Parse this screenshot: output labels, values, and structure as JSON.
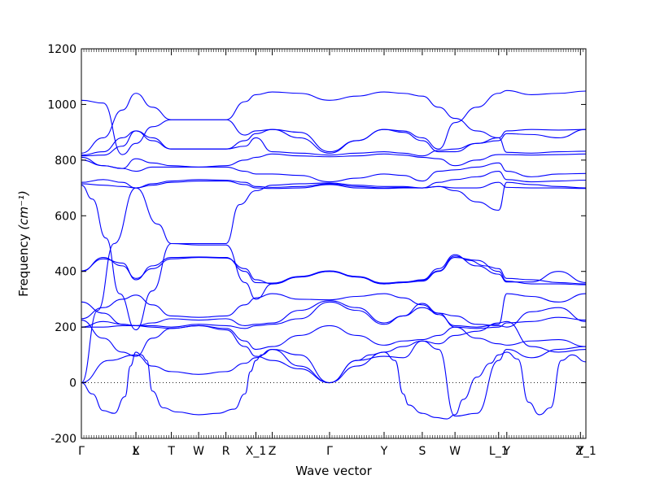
{
  "chart_data": {
    "type": "line",
    "xlabel": "Wave vector",
    "ylabel": "Frequency ",
    "ylabel_unit": "(cm⁻¹)",
    "ylim": [
      -200,
      1200
    ],
    "yticks": [
      -200,
      0,
      200,
      400,
      600,
      800,
      1000,
      1200
    ],
    "xlim": [
      0,
      18.5
    ],
    "high_symmetry_points": [
      {
        "label": "Γ",
        "x": 0
      },
      {
        "label": "X",
        "x": 2.0
      },
      {
        "label": "L",
        "x": 2.0
      },
      {
        "label": "T",
        "x": 3.3
      },
      {
        "label": "W",
        "x": 4.3
      },
      {
        "label": "R",
        "x": 5.3
      },
      {
        "label": "X_1",
        "x": 6.4
      },
      {
        "label": "Z",
        "x": 7.0
      },
      {
        "label": "Γ",
        "x": 9.1
      },
      {
        "label": "Y",
        "x": 11.1
      },
      {
        "label": "S",
        "x": 12.5
      },
      {
        "label": "W",
        "x": 13.7
      },
      {
        "label": "L_1",
        "x": 15.3
      },
      {
        "label": "Y",
        "x": 15.6
      },
      {
        "label": "Y",
        "x": 18.3
      },
      {
        "label": "Z_1",
        "x": 18.5
      }
    ],
    "grid": false,
    "zero_line": true,
    "series": [
      {
        "x": [
          0,
          0.8,
          1.5,
          2.0,
          2.6,
          3.3,
          4.3,
          5.3,
          6.0,
          6.4,
          7.0,
          8.0,
          9.1,
          10.1,
          11.1,
          11.8,
          12.5,
          13.1,
          13.7,
          14.5,
          15.3,
          15.6,
          16.5,
          17.5,
          18.5
        ],
        "y": [
          1015,
          1005,
          820,
          860,
          920,
          945,
          945,
          945,
          1010,
          1035,
          1045,
          1040,
          1015,
          1030,
          1045,
          1040,
          1030,
          990,
          950,
          905,
          880,
          905,
          910,
          908,
          910
        ]
      },
      {
        "x": [
          0,
          0.8,
          1.5,
          2.0,
          2.6,
          3.3,
          4.3,
          5.3,
          6.0,
          6.4,
          7.0,
          8.0,
          9.1,
          10.1,
          11.1,
          11.8,
          12.5,
          13.1,
          13.7,
          14.5,
          15.3,
          15.6,
          16.5,
          17.5,
          18.5
        ],
        "y": [
          825,
          880,
          980,
          1040,
          990,
          945,
          945,
          945,
          890,
          905,
          910,
          880,
          825,
          870,
          910,
          905,
          880,
          840,
          935,
          990,
          1040,
          1050,
          1035,
          1040,
          1048
        ]
      },
      {
        "x": [
          0,
          0.8,
          1.5,
          2.0,
          2.6,
          3.3,
          4.3,
          5.3,
          6.0,
          6.4,
          7.0,
          8.0,
          9.1,
          10.1,
          11.1,
          11.8,
          12.5,
          13.1,
          13.7,
          14.5,
          15.3,
          15.6,
          16.5,
          17.5,
          18.5
        ],
        "y": [
          818,
          830,
          880,
          905,
          870,
          840,
          840,
          840,
          870,
          895,
          910,
          900,
          830,
          870,
          910,
          900,
          870,
          830,
          830,
          860,
          870,
          895,
          892,
          880,
          910
        ]
      },
      {
        "x": [
          0,
          0.8,
          1.5,
          2.0,
          2.6,
          3.3,
          4.3,
          5.3,
          6.0,
          6.4,
          7.0,
          8.0,
          9.1,
          10.1,
          11.1,
          11.8,
          12.5,
          13.1,
          13.7,
          14.5,
          15.3,
          15.6,
          16.5,
          17.5,
          18.5
        ],
        "y": [
          815,
          818,
          850,
          905,
          880,
          840,
          840,
          840,
          850,
          880,
          830,
          825,
          818,
          825,
          830,
          825,
          815,
          835,
          840,
          860,
          880,
          828,
          825,
          830,
          832
        ]
      },
      {
        "x": [
          0,
          0.8,
          1.5,
          2.0,
          2.6,
          3.3,
          4.3,
          5.3,
          6.0,
          6.4,
          7.0,
          8.0,
          9.1,
          10.1,
          11.1,
          11.8,
          12.5,
          13.1,
          13.7,
          14.5,
          15.3,
          15.6,
          16.5,
          17.5,
          18.5
        ],
        "y": [
          810,
          780,
          770,
          805,
          790,
          780,
          775,
          780,
          800,
          810,
          822,
          815,
          812,
          815,
          822,
          818,
          810,
          805,
          780,
          800,
          820,
          820,
          818,
          820,
          822
        ]
      },
      {
        "x": [
          0,
          0.8,
          1.5,
          2.0,
          2.6,
          3.3,
          4.3,
          5.3,
          6.0,
          6.4,
          7.0,
          8.0,
          9.1,
          10.1,
          11.1,
          11.8,
          12.5,
          13.1,
          13.7,
          14.5,
          15.3,
          15.6,
          16.5,
          17.5,
          18.5
        ],
        "y": [
          800,
          780,
          770,
          760,
          775,
          775,
          775,
          775,
          760,
          750,
          750,
          745,
          722,
          735,
          750,
          745,
          725,
          760,
          765,
          775,
          790,
          760,
          740,
          750,
          752
        ]
      },
      {
        "x": [
          0,
          0.8,
          1.5,
          2.0,
          2.6,
          3.3,
          4.3,
          5.3,
          6.0,
          6.4,
          7.0,
          8.0,
          9.1,
          10.1,
          11.1,
          11.8,
          12.5,
          13.1,
          13.7,
          14.5,
          15.3,
          15.6,
          16.5,
          17.5,
          18.5
        ],
        "y": [
          720,
          730,
          720,
          700,
          715,
          725,
          730,
          728,
          720,
          705,
          702,
          705,
          715,
          705,
          700,
          702,
          700,
          720,
          730,
          740,
          760,
          730,
          722,
          725,
          728
        ]
      },
      {
        "x": [
          0,
          0.8,
          1.5,
          2.0,
          2.6,
          3.3,
          4.3,
          5.3,
          6.0,
          6.4,
          7.0,
          8.0,
          9.1,
          10.1,
          11.1,
          11.8,
          12.5,
          13.1,
          13.7,
          14.5,
          15.3,
          15.6,
          16.5,
          17.5,
          18.5
        ],
        "y": [
          715,
          710,
          705,
          700,
          710,
          720,
          725,
          725,
          712,
          700,
          698,
          700,
          712,
          700,
          698,
          700,
          700,
          705,
          700,
          700,
          720,
          702,
          700,
          700,
          698
        ]
      },
      {
        "x": [
          0,
          0.4,
          0.9,
          1.4,
          2.0,
          2.6,
          3.3,
          4.3,
          5.3,
          5.8,
          6.4,
          7.0,
          8.0,
          9.1,
          10.1,
          11.1,
          11.8,
          12.5,
          13.1,
          13.7,
          14.5,
          15.3,
          15.6,
          16.5,
          17.5,
          18.5
        ],
        "y": [
          710,
          660,
          520,
          320,
          190,
          330,
          500,
          500,
          500,
          640,
          690,
          710,
          715,
          718,
          710,
          705,
          705,
          700,
          705,
          690,
          650,
          620,
          720,
          712,
          705,
          700
        ]
      },
      {
        "x": [
          0,
          0.6,
          1.2,
          2.0,
          2.8,
          3.3,
          4.3,
          5.3,
          6.0,
          6.4,
          7.0,
          8.0,
          9.1,
          10.1,
          11.1,
          11.8,
          12.5,
          13.1,
          13.7,
          14.2,
          14.8,
          15.3,
          15.6,
          16.5,
          17.5,
          18.5
        ],
        "y": [
          0,
          260,
          500,
          700,
          570,
          500,
          495,
          495,
          360,
          300,
          355,
          380,
          400,
          380,
          355,
          360,
          370,
          410,
          460,
          440,
          420,
          410,
          375,
          370,
          360,
          355
        ]
      },
      {
        "x": [
          0,
          0.8,
          1.5,
          2.0,
          2.6,
          3.3,
          4.3,
          5.3,
          6.0,
          6.4,
          7.0,
          8.0,
          9.1,
          10.1,
          11.1,
          11.8,
          12.5,
          13.1,
          13.7,
          14.5,
          15.3,
          15.6,
          16.5,
          17.5,
          18.5
        ],
        "y": [
          400,
          450,
          420,
          375,
          410,
          445,
          450,
          448,
          410,
          370,
          355,
          380,
          400,
          380,
          355,
          360,
          365,
          400,
          450,
          440,
          400,
          365,
          355,
          355,
          352
        ]
      },
      {
        "x": [
          0,
          0.8,
          1.5,
          2.0,
          2.6,
          3.3,
          4.3,
          5.3,
          6.0,
          6.4,
          7.0,
          8.0,
          9.1,
          10.1,
          11.1,
          11.8,
          12.5,
          13.1,
          13.7,
          14.5,
          15.3,
          15.6,
          16.5,
          17.5,
          18.5
        ],
        "y": [
          402,
          445,
          430,
          370,
          420,
          450,
          452,
          450,
          400,
          360,
          358,
          382,
          402,
          382,
          358,
          362,
          368,
          402,
          455,
          420,
          390,
          362,
          362,
          400,
          360
        ]
      },
      {
        "x": [
          0,
          0.8,
          1.5,
          2.0,
          2.6,
          3.3,
          4.3,
          5.3,
          6.0,
          6.4,
          7.0,
          8.0,
          9.1,
          10.1,
          11.1,
          11.8,
          12.5,
          13.1,
          13.7,
          14.5,
          15.3,
          15.6,
          16.5,
          17.5,
          18.5
        ],
        "y": [
          290,
          250,
          210,
          205,
          215,
          230,
          225,
          230,
          205,
          210,
          215,
          260,
          295,
          270,
          215,
          240,
          285,
          250,
          200,
          195,
          200,
          215,
          220,
          235,
          225
        ]
      },
      {
        "x": [
          0,
          0.8,
          1.5,
          2.0,
          2.6,
          3.3,
          4.3,
          5.3,
          6.0,
          6.4,
          7.0,
          8.0,
          9.1,
          10.1,
          11.1,
          11.8,
          12.5,
          13.1,
          13.7,
          14.5,
          15.3,
          15.6,
          16.5,
          17.5,
          18.5
        ],
        "y": [
          230,
          270,
          300,
          315,
          280,
          240,
          235,
          240,
          280,
          305,
          320,
          300,
          298,
          310,
          320,
          305,
          280,
          245,
          205,
          200,
          210,
          320,
          310,
          290,
          320
        ]
      },
      {
        "x": [
          0,
          0.8,
          1.5,
          2.0,
          2.6,
          3.3,
          4.3,
          5.3,
          6.0,
          6.4,
          7.0,
          8.0,
          9.1,
          10.1,
          11.1,
          11.8,
          12.5,
          13.1,
          13.7,
          14.5,
          15.3,
          15.6,
          16.5,
          17.5,
          18.5
        ],
        "y": [
          200,
          220,
          210,
          205,
          205,
          200,
          210,
          205,
          195,
          205,
          210,
          230,
          290,
          260,
          210,
          240,
          270,
          250,
          240,
          210,
          205,
          200,
          255,
          270,
          220
        ]
      },
      {
        "x": [
          0,
          0.8,
          1.5,
          2.0,
          2.6,
          3.3,
          4.3,
          5.3,
          6.0,
          6.4,
          7.0,
          8.0,
          9.1,
          10.1,
          11.1,
          11.8,
          12.5,
          13.1,
          13.7,
          14.5,
          15.3,
          15.6,
          16.5,
          17.5,
          18.5
        ],
        "y": [
          200,
          200,
          205,
          205,
          200,
          195,
          205,
          195,
          150,
          120,
          130,
          170,
          205,
          170,
          135,
          150,
          155,
          170,
          200,
          160,
          140,
          135,
          150,
          155,
          130
        ]
      },
      {
        "x": [
          0,
          0.8,
          1.5,
          2.0,
          2.6,
          3.3,
          4.3,
          5.3,
          6.0,
          6.4,
          7.0,
          8.0,
          9.1,
          10.1,
          11.1,
          11.8,
          12.5,
          13.1,
          13.7,
          14.5,
          15.3,
          15.6,
          16.5,
          17.5,
          18.5
        ],
        "y": [
          225,
          160,
          110,
          95,
          160,
          195,
          205,
          190,
          130,
          95,
          80,
          50,
          0,
          60,
          110,
          130,
          150,
          140,
          170,
          185,
          215,
          220,
          130,
          110,
          120
        ]
      },
      {
        "x": [
          0,
          0.4,
          0.8,
          1.2,
          1.6,
          1.8,
          2.0,
          2.2,
          2.4,
          2.6,
          3.0,
          3.5,
          4.3,
          5.0,
          5.6,
          6.0,
          6.2,
          6.4,
          6.6,
          7.0,
          8.0,
          9.1,
          10.1,
          10.6,
          11.1,
          11.5,
          11.8,
          12.0,
          12.5,
          13.0,
          13.4,
          13.7,
          14.0,
          14.5,
          15.0,
          15.3,
          15.6,
          16.0,
          16.4,
          16.8,
          17.2,
          17.6,
          18.0,
          18.5
        ],
        "y": [
          0,
          -40,
          -100,
          -110,
          -50,
          60,
          110,
          100,
          80,
          -30,
          -90,
          -105,
          -115,
          -110,
          -95,
          -40,
          40,
          80,
          100,
          120,
          60,
          0,
          80,
          100,
          110,
          80,
          -40,
          -80,
          -110,
          -125,
          -130,
          -115,
          -60,
          20,
          70,
          100,
          110,
          85,
          -70,
          -115,
          -90,
          80,
          100,
          75
        ]
      },
      {
        "x": [
          0,
          1.0,
          2.0,
          2.6,
          3.3,
          4.3,
          5.3,
          6.0,
          6.4,
          7.0,
          8.0,
          9.1,
          10.1,
          11.1,
          11.8,
          12.5,
          13.1,
          13.7,
          14.5,
          15.3,
          15.6,
          16.5,
          17.5,
          18.5
        ],
        "y": [
          0,
          80,
          100,
          60,
          40,
          30,
          40,
          70,
          90,
          120,
          100,
          0,
          80,
          95,
          90,
          150,
          120,
          -120,
          -110,
          80,
          120,
          90,
          120,
          130
        ]
      }
    ]
  }
}
